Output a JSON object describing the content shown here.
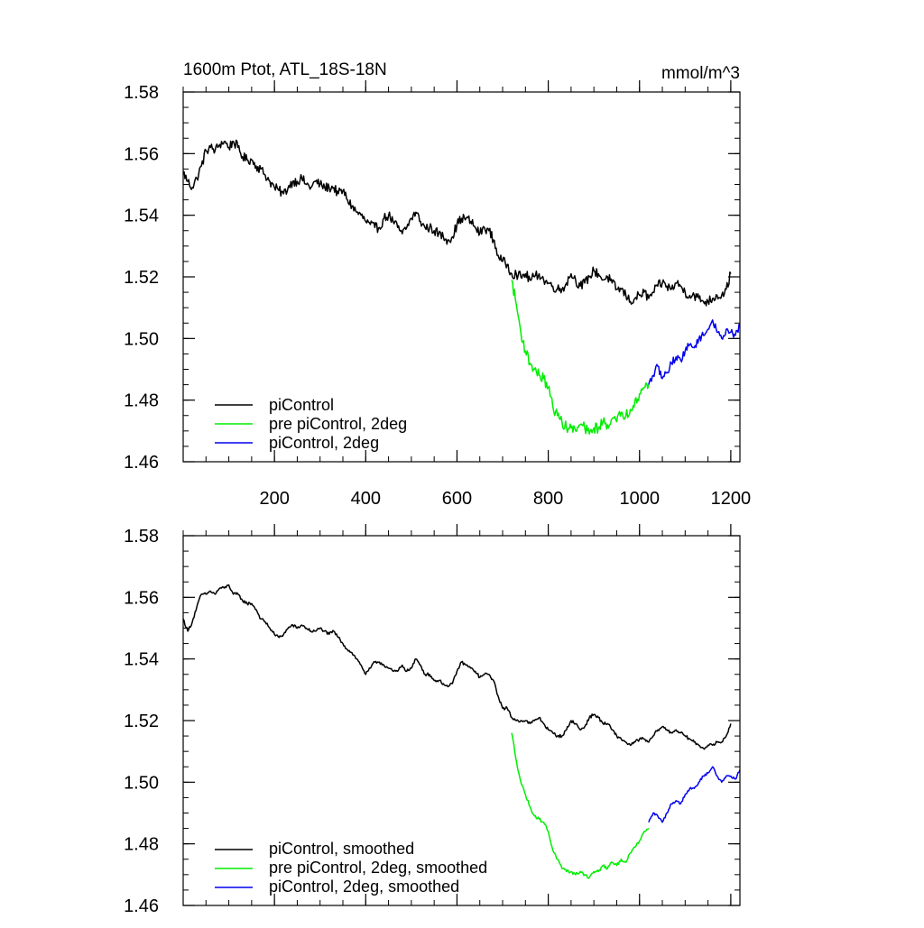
{
  "chart_data": [
    {
      "type": "line",
      "title_left": "1600m Ptot, ATL_18S-18N",
      "title_right": "mmol/m^3",
      "xlabel": "",
      "ylabel": "",
      "xlim": [
        0,
        1220
      ],
      "ylim": [
        1.46,
        1.58
      ],
      "x_ticks": [
        200,
        400,
        600,
        800,
        1000,
        1200
      ],
      "x_tick_labels": [
        "200",
        "400",
        "600",
        "800",
        "1000",
        "1200"
      ],
      "y_ticks": [
        1.46,
        1.48,
        1.5,
        1.52,
        1.54,
        1.56,
        1.58
      ],
      "y_tick_labels": [
        "1.46",
        "1.48",
        "1.50",
        "1.52",
        "1.54",
        "1.56",
        "1.58"
      ],
      "legend_position": "bottom-left",
      "series": [
        {
          "name": "piControl",
          "color": "#000000",
          "noise": 0.0016,
          "x": [
            0,
            10,
            20,
            30,
            40,
            50,
            60,
            70,
            80,
            90,
            100,
            110,
            120,
            130,
            140,
            150,
            160,
            170,
            180,
            190,
            200,
            210,
            220,
            230,
            240,
            250,
            260,
            270,
            280,
            290,
            300,
            310,
            320,
            330,
            340,
            350,
            360,
            370,
            380,
            390,
            400,
            410,
            420,
            430,
            440,
            450,
            460,
            470,
            480,
            490,
            500,
            510,
            520,
            530,
            540,
            550,
            560,
            570,
            580,
            590,
            600,
            610,
            620,
            630,
            640,
            650,
            660,
            670,
            680,
            690,
            700,
            710,
            720,
            730,
            740,
            750,
            760,
            770,
            780,
            790,
            800,
            810,
            820,
            830,
            840,
            850,
            860,
            870,
            880,
            890,
            900,
            910,
            920,
            930,
            940,
            950,
            960,
            970,
            980,
            990,
            1000,
            1010,
            1020,
            1030,
            1040,
            1050,
            1060,
            1070,
            1080,
            1090,
            1100,
            1110,
            1120,
            1130,
            1140,
            1150,
            1160,
            1170,
            1180,
            1190,
            1200
          ],
          "y": [
            1.554,
            1.551,
            1.549,
            1.552,
            1.556,
            1.561,
            1.562,
            1.561,
            1.563,
            1.564,
            1.562,
            1.564,
            1.562,
            1.559,
            1.558,
            1.558,
            1.556,
            1.555,
            1.553,
            1.551,
            1.549,
            1.548,
            1.547,
            1.549,
            1.551,
            1.551,
            1.552,
            1.55,
            1.549,
            1.551,
            1.55,
            1.549,
            1.549,
            1.549,
            1.547,
            1.548,
            1.545,
            1.543,
            1.541,
            1.54,
            1.538,
            1.537,
            1.536,
            1.536,
            1.539,
            1.54,
            1.538,
            1.536,
            1.534,
            1.536,
            1.539,
            1.541,
            1.538,
            1.536,
            1.536,
            1.535,
            1.534,
            1.533,
            1.532,
            1.533,
            1.537,
            1.539,
            1.539,
            1.538,
            1.536,
            1.534,
            1.536,
            1.535,
            1.532,
            1.527,
            1.525,
            1.524,
            1.521,
            1.521,
            1.52,
            1.521,
            1.519,
            1.52,
            1.521,
            1.519,
            1.518,
            1.517,
            1.516,
            1.516,
            1.518,
            1.521,
            1.519,
            1.517,
            1.518,
            1.52,
            1.522,
            1.521,
            1.519,
            1.52,
            1.518,
            1.516,
            1.516,
            1.514,
            1.512,
            1.513,
            1.514,
            1.515,
            1.513,
            1.515,
            1.517,
            1.518,
            1.517,
            1.516,
            1.518,
            1.517,
            1.515,
            1.514,
            1.514,
            1.513,
            1.512,
            1.512,
            1.513,
            1.514,
            1.514,
            1.516,
            1.521
          ]
        },
        {
          "name": "pre piControl, 2deg",
          "color": "#00ee00",
          "noise": 0.0018,
          "x": [
            720,
            730,
            740,
            750,
            760,
            770,
            780,
            790,
            800,
            810,
            820,
            830,
            840,
            850,
            860,
            870,
            880,
            890,
            900,
            910,
            920,
            930,
            940,
            950,
            960,
            970,
            980,
            990,
            1000,
            1010,
            1020
          ],
          "y": [
            1.519,
            1.511,
            1.502,
            1.496,
            1.492,
            1.49,
            1.488,
            1.487,
            1.484,
            1.478,
            1.475,
            1.473,
            1.471,
            1.471,
            1.47,
            1.472,
            1.471,
            1.469,
            1.471,
            1.471,
            1.473,
            1.472,
            1.474,
            1.473,
            1.476,
            1.475,
            1.477,
            1.48,
            1.482,
            1.484,
            1.485
          ]
        },
        {
          "name": "piControl, 2deg",
          "color": "#0000ee",
          "noise": 0.0012,
          "x": [
            1020,
            1030,
            1040,
            1050,
            1060,
            1070,
            1080,
            1090,
            1100,
            1110,
            1120,
            1130,
            1140,
            1150,
            1160,
            1170,
            1180,
            1190,
            1200,
            1210,
            1220
          ],
          "y": [
            1.485,
            1.488,
            1.491,
            1.487,
            1.489,
            1.492,
            1.494,
            1.493,
            1.496,
            1.498,
            1.497,
            1.5,
            1.501,
            1.503,
            1.506,
            1.502,
            1.5,
            1.503,
            1.502,
            1.501,
            1.504
          ]
        }
      ]
    },
    {
      "type": "line",
      "xlabel": "",
      "ylabel": "",
      "xlim": [
        0,
        1220
      ],
      "ylim": [
        1.46,
        1.58
      ],
      "x_ticks": [
        200,
        400,
        600,
        800,
        1000,
        1200
      ],
      "y_ticks": [
        1.46,
        1.48,
        1.5,
        1.52,
        1.54,
        1.56,
        1.58
      ],
      "y_tick_labels": [
        "1.46",
        "1.48",
        "1.50",
        "1.52",
        "1.54",
        "1.56",
        "1.58"
      ],
      "legend_position": "bottom-left",
      "series": [
        {
          "name": "piControl, smoothed",
          "color": "#000000",
          "noise": 0.0005,
          "x": [
            0,
            10,
            20,
            30,
            40,
            50,
            60,
            70,
            80,
            90,
            100,
            110,
            120,
            130,
            140,
            150,
            160,
            170,
            180,
            190,
            200,
            210,
            220,
            230,
            240,
            250,
            260,
            270,
            280,
            290,
            300,
            310,
            320,
            330,
            340,
            350,
            360,
            370,
            380,
            390,
            400,
            410,
            420,
            430,
            440,
            450,
            460,
            470,
            480,
            490,
            500,
            510,
            520,
            530,
            540,
            550,
            560,
            570,
            580,
            590,
            600,
            610,
            620,
            630,
            640,
            650,
            660,
            670,
            680,
            690,
            700,
            710,
            720,
            730,
            740,
            750,
            760,
            770,
            780,
            790,
            800,
            810,
            820,
            830,
            840,
            850,
            860,
            870,
            880,
            890,
            900,
            910,
            920,
            930,
            940,
            950,
            960,
            970,
            980,
            990,
            1000,
            1010,
            1020,
            1030,
            1040,
            1050,
            1060,
            1070,
            1080,
            1090,
            1100,
            1110,
            1120,
            1130,
            1140,
            1150,
            1160,
            1170,
            1180,
            1190,
            1200
          ],
          "y": [
            1.553,
            1.549,
            1.552,
            1.557,
            1.561,
            1.561,
            1.562,
            1.561,
            1.563,
            1.563,
            1.564,
            1.561,
            1.561,
            1.559,
            1.558,
            1.558,
            1.556,
            1.553,
            1.552,
            1.55,
            1.548,
            1.547,
            1.548,
            1.55,
            1.551,
            1.55,
            1.551,
            1.55,
            1.549,
            1.549,
            1.55,
            1.549,
            1.548,
            1.549,
            1.547,
            1.545,
            1.543,
            1.542,
            1.54,
            1.538,
            1.535,
            1.537,
            1.539,
            1.539,
            1.538,
            1.537,
            1.536,
            1.536,
            1.538,
            1.536,
            1.537,
            1.54,
            1.538,
            1.535,
            1.535,
            1.533,
            1.533,
            1.532,
            1.531,
            1.532,
            1.536,
            1.539,
            1.538,
            1.537,
            1.536,
            1.534,
            1.535,
            1.535,
            1.533,
            1.528,
            1.524,
            1.524,
            1.521,
            1.52,
            1.52,
            1.52,
            1.519,
            1.52,
            1.521,
            1.519,
            1.517,
            1.516,
            1.515,
            1.515,
            1.517,
            1.52,
            1.519,
            1.517,
            1.518,
            1.521,
            1.522,
            1.521,
            1.519,
            1.519,
            1.517,
            1.515,
            1.514,
            1.513,
            1.512,
            1.513,
            1.514,
            1.514,
            1.513,
            1.515,
            1.517,
            1.518,
            1.517,
            1.516,
            1.517,
            1.516,
            1.515,
            1.514,
            1.513,
            1.512,
            1.511,
            1.512,
            1.512,
            1.513,
            1.513,
            1.515,
            1.519
          ]
        },
        {
          "name": "pre piControl, 2deg, smoothed",
          "color": "#00ee00",
          "noise": 0.0005,
          "x": [
            720,
            730,
            740,
            750,
            760,
            770,
            780,
            790,
            800,
            810,
            820,
            830,
            840,
            850,
            860,
            870,
            880,
            890,
            900,
            910,
            920,
            930,
            940,
            950,
            960,
            970,
            980,
            990,
            1000,
            1010,
            1020
          ],
          "y": [
            1.516,
            1.507,
            1.5,
            1.496,
            1.492,
            1.489,
            1.488,
            1.487,
            1.484,
            1.478,
            1.475,
            1.472,
            1.471,
            1.471,
            1.47,
            1.471,
            1.47,
            1.469,
            1.471,
            1.471,
            1.473,
            1.472,
            1.474,
            1.473,
            1.475,
            1.474,
            1.477,
            1.479,
            1.481,
            1.484,
            1.485
          ]
        },
        {
          "name": "piControl, 2deg, smoothed",
          "color": "#0000ee",
          "noise": 0.0004,
          "x": [
            1020,
            1030,
            1040,
            1050,
            1060,
            1070,
            1080,
            1090,
            1100,
            1110,
            1120,
            1130,
            1140,
            1150,
            1160,
            1170,
            1180,
            1190,
            1200,
            1210,
            1220
          ],
          "y": [
            1.487,
            1.49,
            1.489,
            1.487,
            1.49,
            1.493,
            1.494,
            1.493,
            1.496,
            1.498,
            1.498,
            1.5,
            1.502,
            1.503,
            1.505,
            1.502,
            1.5,
            1.502,
            1.502,
            1.501,
            1.504
          ]
        }
      ]
    }
  ]
}
